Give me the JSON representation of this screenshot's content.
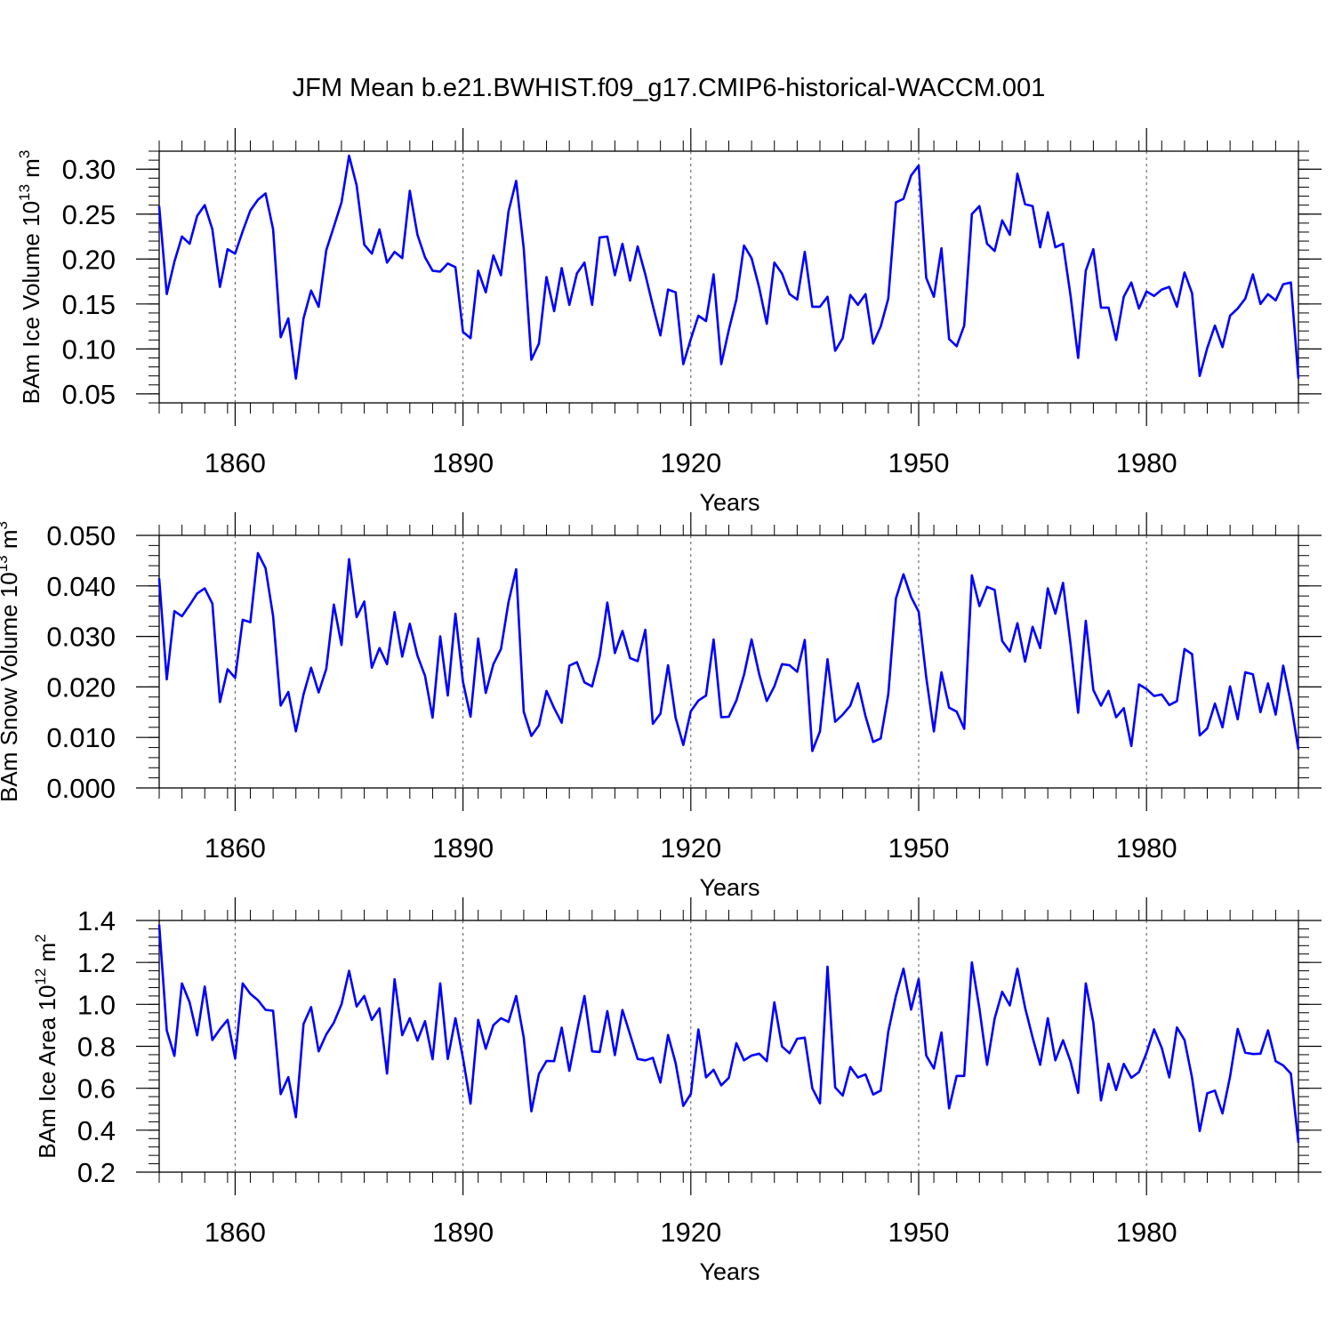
{
  "title": "JFM Mean b.e21.BWHIST.f09_g17.CMIP6-historical-WACCM.001",
  "line_color": "#0000ff",
  "chart_data": [
    {
      "type": "line",
      "ylabel": {
        "text": "BAm Ice Volume 10",
        "exp": "13",
        "unit": " m",
        "unit_exp": "3"
      },
      "xlabel": "Years",
      "xlim": [
        1850,
        2000
      ],
      "ylim": [
        0.04,
        0.32
      ],
      "x_ticks": [
        1860,
        1890,
        1920,
        1950,
        1980
      ],
      "y_ticks": [
        "0.05",
        "0.10",
        "0.15",
        "0.20",
        "0.25",
        "0.30"
      ],
      "x_start": 1850,
      "values": [
        0.259,
        0.161,
        0.197,
        0.225,
        0.217,
        0.248,
        0.26,
        0.233,
        0.169,
        0.211,
        0.206,
        0.231,
        0.254,
        0.266,
        0.273,
        0.233,
        0.113,
        0.134,
        0.067,
        0.134,
        0.165,
        0.147,
        0.21,
        0.236,
        0.263,
        0.315,
        0.282,
        0.216,
        0.206,
        0.233,
        0.196,
        0.208,
        0.201,
        0.276,
        0.227,
        0.202,
        0.187,
        0.186,
        0.195,
        0.191,
        0.119,
        0.112,
        0.187,
        0.163,
        0.204,
        0.182,
        0.253,
        0.287,
        0.212,
        0.088,
        0.106,
        0.18,
        0.142,
        0.19,
        0.149,
        0.184,
        0.196,
        0.149,
        0.224,
        0.225,
        0.182,
        0.217,
        0.176,
        0.214,
        0.183,
        0.148,
        0.115,
        0.166,
        0.163,
        0.083,
        0.111,
        0.137,
        0.131,
        0.183,
        0.083,
        0.121,
        0.155,
        0.215,
        0.201,
        0.168,
        0.128,
        0.196,
        0.184,
        0.161,
        0.155,
        0.208,
        0.147,
        0.147,
        0.158,
        0.098,
        0.112,
        0.16,
        0.149,
        0.161,
        0.106,
        0.125,
        0.156,
        0.263,
        0.267,
        0.293,
        0.304,
        0.179,
        0.158,
        0.212,
        0.111,
        0.103,
        0.126,
        0.25,
        0.259,
        0.217,
        0.209,
        0.243,
        0.227,
        0.295,
        0.261,
        0.259,
        0.213,
        0.252,
        0.213,
        0.217,
        0.159,
        0.09,
        0.187,
        0.211,
        0.146,
        0.146,
        0.11,
        0.158,
        0.174,
        0.145,
        0.164,
        0.159,
        0.166,
        0.169,
        0.147,
        0.185,
        0.162,
        0.07,
        0.101,
        0.126,
        0.102,
        0.137,
        0.145,
        0.156,
        0.183,
        0.15,
        0.161,
        0.154,
        0.172,
        0.174,
        0.067
      ]
    },
    {
      "type": "line",
      "ylabel": {
        "text": "BAm Snow Volume 10",
        "exp": "13",
        "unit": " m",
        "unit_exp": "3"
      },
      "xlabel": "Years",
      "xlim": [
        1850,
        2000
      ],
      "ylim": [
        0.0,
        0.05
      ],
      "x_ticks": [
        1860,
        1890,
        1920,
        1950,
        1980
      ],
      "y_ticks": [
        "0.000",
        "0.010",
        "0.020",
        "0.030",
        "0.040",
        "0.050"
      ],
      "x_start": 1850,
      "values": [
        0.0415,
        0.0215,
        0.035,
        0.034,
        0.0362,
        0.0385,
        0.0395,
        0.0365,
        0.017,
        0.0235,
        0.0218,
        0.0333,
        0.0328,
        0.0465,
        0.0435,
        0.034,
        0.0163,
        0.019,
        0.0112,
        0.0185,
        0.0238,
        0.0189,
        0.0236,
        0.0363,
        0.0283,
        0.0453,
        0.0338,
        0.0369,
        0.0238,
        0.0277,
        0.0245,
        0.0348,
        0.026,
        0.0325,
        0.0262,
        0.0222,
        0.0139,
        0.03,
        0.0183,
        0.0345,
        0.021,
        0.0141,
        0.0296,
        0.0188,
        0.0245,
        0.0275,
        0.0368,
        0.0433,
        0.0151,
        0.0103,
        0.0124,
        0.0192,
        0.0158,
        0.0129,
        0.0242,
        0.0249,
        0.0209,
        0.0201,
        0.0261,
        0.0367,
        0.0267,
        0.0311,
        0.0257,
        0.0251,
        0.0313,
        0.0127,
        0.0147,
        0.0243,
        0.0139,
        0.0085,
        0.0152,
        0.0173,
        0.0183,
        0.0294,
        0.014,
        0.0141,
        0.0173,
        0.0224,
        0.0294,
        0.0225,
        0.0172,
        0.0201,
        0.0245,
        0.0243,
        0.023,
        0.0293,
        0.0073,
        0.0112,
        0.0255,
        0.0131,
        0.0145,
        0.0163,
        0.0207,
        0.0142,
        0.0091,
        0.0098,
        0.0185,
        0.0375,
        0.0423,
        0.0378,
        0.0349,
        0.0219,
        0.0112,
        0.0229,
        0.0159,
        0.0151,
        0.0117,
        0.0421,
        0.036,
        0.0398,
        0.0392,
        0.0291,
        0.027,
        0.0326,
        0.025,
        0.0319,
        0.0277,
        0.0395,
        0.0345,
        0.0406,
        0.0284,
        0.0149,
        0.0331,
        0.0194,
        0.0163,
        0.0192,
        0.014,
        0.0158,
        0.0083,
        0.0205,
        0.0196,
        0.0182,
        0.0185,
        0.0164,
        0.0172,
        0.0275,
        0.0265,
        0.0104,
        0.0118,
        0.0167,
        0.012,
        0.0201,
        0.0136,
        0.0229,
        0.0225,
        0.015,
        0.0207,
        0.0145,
        0.0242,
        0.0168,
        0.0076
      ]
    },
    {
      "type": "line",
      "ylabel": {
        "text": "BAm Ice Area 10",
        "exp": "12",
        "unit": " m",
        "unit_exp": "2"
      },
      "xlabel": "Years",
      "xlim": [
        1850,
        2000
      ],
      "ylim": [
        0.2,
        1.4
      ],
      "x_ticks": [
        1860,
        1890,
        1920,
        1950,
        1980
      ],
      "y_ticks": [
        "0.2",
        "0.4",
        "0.6",
        "0.8",
        "1.0",
        "1.2",
        "1.4"
      ],
      "x_start": 1850,
      "values": [
        1.38,
        0.876,
        0.754,
        1.1,
        1.01,
        0.852,
        1.085,
        0.83,
        0.882,
        0.926,
        0.742,
        1.1,
        1.05,
        1.02,
        0.974,
        0.969,
        0.572,
        0.653,
        0.462,
        0.906,
        0.987,
        0.776,
        0.857,
        0.913,
        1.0,
        1.16,
        0.99,
        1.04,
        0.926,
        0.981,
        0.67,
        1.12,
        0.853,
        0.934,
        0.827,
        0.92,
        0.738,
        1.1,
        0.74,
        0.934,
        0.744,
        0.527,
        0.926,
        0.788,
        0.901,
        0.934,
        0.916,
        1.04,
        0.842,
        0.49,
        0.668,
        0.73,
        0.729,
        0.889,
        0.683,
        0.868,
        1.04,
        0.776,
        0.773,
        0.968,
        0.758,
        0.973,
        0.856,
        0.74,
        0.733,
        0.745,
        0.627,
        0.854,
        0.72,
        0.516,
        0.573,
        0.88,
        0.652,
        0.688,
        0.614,
        0.65,
        0.815,
        0.733,
        0.756,
        0.765,
        0.729,
        1.01,
        0.799,
        0.767,
        0.836,
        0.841,
        0.6,
        0.528,
        1.18,
        0.604,
        0.565,
        0.701,
        0.651,
        0.666,
        0.57,
        0.589,
        0.869,
        1.04,
        1.17,
        0.975,
        1.12,
        0.756,
        0.694,
        0.866,
        0.504,
        0.659,
        0.659,
        1.2,
        0.98,
        0.712,
        0.932,
        1.06,
        0.995,
        1.17,
        0.985,
        0.842,
        0.712,
        0.934,
        0.733,
        0.829,
        0.727,
        0.578,
        1.1,
        0.913,
        0.542,
        0.717,
        0.592,
        0.716,
        0.65,
        0.677,
        0.768,
        0.881,
        0.793,
        0.652,
        0.89,
        0.83,
        0.65,
        0.396,
        0.576,
        0.589,
        0.48,
        0.655,
        0.883,
        0.77,
        0.763,
        0.765,
        0.876,
        0.729,
        0.709,
        0.67,
        0.34
      ]
    }
  ]
}
